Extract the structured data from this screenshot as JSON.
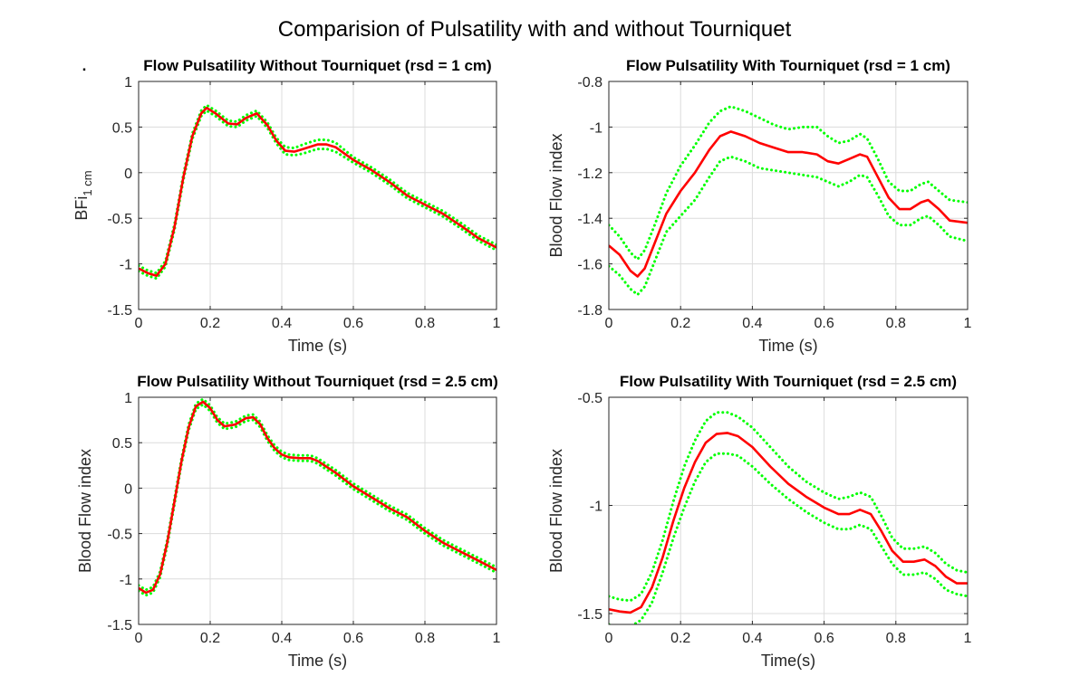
{
  "figure_title": "Comparision of Pulsatility with and without Tourniquet",
  "stray_mark": ".",
  "colors": {
    "mean": "#ff0000",
    "bounds": "#00ff00"
  },
  "chart_data": [
    {
      "type": "line",
      "title": "Flow Pulsatility Without Tourniquet (rsd = 1 cm)",
      "xlabel": "Time (s)",
      "ylabel_main": "BFi",
      "ylabel_sub": "1 cm",
      "xlim": [
        0,
        1
      ],
      "ylim": [
        -1.5,
        1
      ],
      "xticks": [
        0,
        0.2,
        0.4,
        0.6,
        0.8,
        1
      ],
      "xtick_labels": [
        "0",
        "0.2",
        "0.4",
        "0.6",
        "0.8",
        "1"
      ],
      "yticks": [
        1,
        0.5,
        0,
        -0.5,
        -1,
        -1.5
      ],
      "ytick_labels": [
        "1",
        "0.5",
        "0",
        "-0.5",
        "-1",
        "-1.5"
      ],
      "grid": true,
      "series": [
        {
          "role": "mean",
          "style": "solid",
          "x": [
            0,
            0.025,
            0.05,
            0.075,
            0.1,
            0.125,
            0.15,
            0.175,
            0.19,
            0.215,
            0.25,
            0.275,
            0.3,
            0.33,
            0.36,
            0.385,
            0.41,
            0.435,
            0.46,
            0.5,
            0.525,
            0.55,
            0.6,
            0.65,
            0.7,
            0.75,
            0.8,
            0.85,
            0.9,
            0.95,
            1
          ],
          "y": [
            -1.05,
            -1.1,
            -1.13,
            -1.0,
            -0.6,
            -0.05,
            0.4,
            0.65,
            0.71,
            0.65,
            0.54,
            0.53,
            0.6,
            0.65,
            0.52,
            0.35,
            0.24,
            0.23,
            0.26,
            0.31,
            0.31,
            0.28,
            0.14,
            0.03,
            -0.1,
            -0.25,
            -0.35,
            -0.45,
            -0.58,
            -0.72,
            -0.82
          ]
        },
        {
          "role": "upper",
          "style": "dotted",
          "x": [
            0,
            0.025,
            0.05,
            0.075,
            0.1,
            0.125,
            0.15,
            0.175,
            0.19,
            0.215,
            0.25,
            0.275,
            0.3,
            0.33,
            0.36,
            0.385,
            0.41,
            0.435,
            0.46,
            0.5,
            0.525,
            0.55,
            0.6,
            0.65,
            0.7,
            0.75,
            0.8,
            0.85,
            0.9,
            0.95,
            1
          ],
          "y": [
            -1.02,
            -1.07,
            -1.1,
            -0.97,
            -0.57,
            -0.02,
            0.43,
            0.68,
            0.74,
            0.68,
            0.57,
            0.56,
            0.63,
            0.68,
            0.55,
            0.38,
            0.28,
            0.27,
            0.31,
            0.36,
            0.36,
            0.33,
            0.17,
            0.06,
            -0.07,
            -0.22,
            -0.32,
            -0.42,
            -0.55,
            -0.69,
            -0.79
          ]
        },
        {
          "role": "lower",
          "style": "dotted",
          "x": [
            0,
            0.025,
            0.05,
            0.075,
            0.1,
            0.125,
            0.15,
            0.175,
            0.19,
            0.215,
            0.25,
            0.275,
            0.3,
            0.33,
            0.36,
            0.385,
            0.41,
            0.435,
            0.46,
            0.5,
            0.525,
            0.55,
            0.6,
            0.65,
            0.7,
            0.75,
            0.8,
            0.85,
            0.9,
            0.95,
            1
          ],
          "y": [
            -1.08,
            -1.13,
            -1.16,
            -1.03,
            -0.63,
            -0.08,
            0.37,
            0.62,
            0.68,
            0.62,
            0.51,
            0.5,
            0.57,
            0.62,
            0.49,
            0.32,
            0.2,
            0.19,
            0.21,
            0.26,
            0.26,
            0.23,
            0.11,
            0.0,
            -0.13,
            -0.28,
            -0.38,
            -0.48,
            -0.61,
            -0.75,
            -0.85
          ]
        }
      ]
    },
    {
      "type": "line",
      "title": "Flow Pulsatility With Tourniquet (rsd = 1 cm)",
      "xlabel": "Time (s)",
      "ylabel_main": "Blood Flow index",
      "ylabel_sub": "",
      "xlim": [
        0,
        1
      ],
      "ylim": [
        -1.8,
        -0.8
      ],
      "xticks": [
        0,
        0.2,
        0.4,
        0.6,
        0.8,
        1
      ],
      "xtick_labels": [
        "0",
        "0.2",
        "0.4",
        "0.6",
        "0.8",
        "1"
      ],
      "yticks": [
        -0.8,
        -1,
        -1.2,
        -1.4,
        -1.6,
        -1.8
      ],
      "ytick_labels": [
        "-0.8",
        "-1",
        "-1.2",
        "-1.4",
        "-1.6",
        "-1.8"
      ],
      "grid": true,
      "series": [
        {
          "role": "mean",
          "style": "solid",
          "x": [
            0,
            0.03,
            0.06,
            0.08,
            0.1,
            0.13,
            0.16,
            0.2,
            0.24,
            0.28,
            0.31,
            0.34,
            0.38,
            0.42,
            0.46,
            0.5,
            0.54,
            0.58,
            0.61,
            0.64,
            0.67,
            0.7,
            0.72,
            0.75,
            0.78,
            0.81,
            0.84,
            0.87,
            0.89,
            0.92,
            0.95,
            1
          ],
          "y": [
            -1.52,
            -1.56,
            -1.63,
            -1.655,
            -1.62,
            -1.5,
            -1.38,
            -1.28,
            -1.2,
            -1.1,
            -1.04,
            -1.02,
            -1.04,
            -1.07,
            -1.09,
            -1.11,
            -1.11,
            -1.12,
            -1.15,
            -1.16,
            -1.14,
            -1.12,
            -1.13,
            -1.22,
            -1.31,
            -1.36,
            -1.36,
            -1.33,
            -1.32,
            -1.36,
            -1.41,
            -1.42
          ]
        },
        {
          "role": "upper",
          "style": "dotted",
          "x": [
            0,
            0.03,
            0.06,
            0.08,
            0.1,
            0.13,
            0.16,
            0.2,
            0.24,
            0.28,
            0.31,
            0.34,
            0.38,
            0.42,
            0.46,
            0.5,
            0.54,
            0.58,
            0.61,
            0.64,
            0.67,
            0.7,
            0.72,
            0.75,
            0.78,
            0.81,
            0.84,
            0.87,
            0.89,
            0.92,
            0.95,
            1
          ],
          "y": [
            -1.43,
            -1.48,
            -1.55,
            -1.58,
            -1.54,
            -1.42,
            -1.29,
            -1.17,
            -1.08,
            -0.98,
            -0.93,
            -0.91,
            -0.93,
            -0.96,
            -0.99,
            -1.01,
            -1.0,
            -1.0,
            -1.04,
            -1.07,
            -1.06,
            -1.03,
            -1.05,
            -1.14,
            -1.24,
            -1.28,
            -1.28,
            -1.25,
            -1.24,
            -1.28,
            -1.32,
            -1.33
          ]
        },
        {
          "role": "lower",
          "style": "dotted",
          "x": [
            0,
            0.03,
            0.06,
            0.08,
            0.1,
            0.13,
            0.16,
            0.2,
            0.24,
            0.28,
            0.31,
            0.34,
            0.38,
            0.42,
            0.46,
            0.5,
            0.54,
            0.58,
            0.61,
            0.64,
            0.67,
            0.7,
            0.72,
            0.75,
            0.78,
            0.81,
            0.84,
            0.87,
            0.89,
            0.92,
            0.95,
            1
          ],
          "y": [
            -1.61,
            -1.65,
            -1.71,
            -1.735,
            -1.7,
            -1.58,
            -1.46,
            -1.39,
            -1.32,
            -1.22,
            -1.15,
            -1.13,
            -1.15,
            -1.18,
            -1.19,
            -1.2,
            -1.21,
            -1.22,
            -1.24,
            -1.26,
            -1.24,
            -1.21,
            -1.22,
            -1.3,
            -1.39,
            -1.43,
            -1.43,
            -1.4,
            -1.39,
            -1.43,
            -1.48,
            -1.5
          ]
        }
      ]
    },
    {
      "type": "line",
      "title": "Flow Pulsatility Without Tourniquet (rsd = 2.5 cm)",
      "xlabel": "Time (s)",
      "ylabel_main": "Blood Flow index",
      "ylabel_sub": "",
      "xlim": [
        0,
        1
      ],
      "ylim": [
        -1.5,
        1
      ],
      "xticks": [
        0,
        0.2,
        0.4,
        0.6,
        0.8,
        1
      ],
      "xtick_labels": [
        "0",
        "0.2",
        "0.4",
        "0.6",
        "0.8",
        "1"
      ],
      "yticks": [
        1,
        0.5,
        0,
        -0.5,
        -1,
        -1.5
      ],
      "ytick_labels": [
        "1",
        "0.5",
        "0",
        "-0.5",
        "-1",
        "-1.5"
      ],
      "grid": true,
      "series": [
        {
          "role": "mean",
          "style": "solid",
          "x": [
            0,
            0.02,
            0.04,
            0.06,
            0.08,
            0.1,
            0.12,
            0.14,
            0.16,
            0.18,
            0.2,
            0.22,
            0.24,
            0.27,
            0.3,
            0.32,
            0.34,
            0.36,
            0.38,
            0.4,
            0.42,
            0.45,
            0.48,
            0.5,
            0.55,
            0.6,
            0.65,
            0.7,
            0.75,
            0.8,
            0.85,
            0.9,
            0.95,
            1
          ],
          "y": [
            -1.1,
            -1.15,
            -1.12,
            -0.95,
            -0.6,
            -0.15,
            0.3,
            0.67,
            0.9,
            0.95,
            0.88,
            0.75,
            0.68,
            0.7,
            0.77,
            0.78,
            0.7,
            0.55,
            0.44,
            0.37,
            0.34,
            0.33,
            0.33,
            0.3,
            0.17,
            0.02,
            -0.1,
            -0.22,
            -0.32,
            -0.47,
            -0.6,
            -0.7,
            -0.8,
            -0.9
          ]
        },
        {
          "role": "upper",
          "style": "dotted",
          "x": [
            0,
            0.02,
            0.04,
            0.06,
            0.08,
            0.1,
            0.12,
            0.14,
            0.16,
            0.18,
            0.2,
            0.22,
            0.24,
            0.27,
            0.3,
            0.32,
            0.34,
            0.36,
            0.38,
            0.4,
            0.42,
            0.45,
            0.48,
            0.5,
            0.55,
            0.6,
            0.65,
            0.7,
            0.75,
            0.8,
            0.85,
            0.9,
            0.95,
            1
          ],
          "y": [
            -1.07,
            -1.12,
            -1.09,
            -0.92,
            -0.57,
            -0.12,
            0.33,
            0.7,
            0.93,
            0.98,
            0.91,
            0.78,
            0.71,
            0.73,
            0.8,
            0.81,
            0.73,
            0.58,
            0.47,
            0.4,
            0.37,
            0.36,
            0.36,
            0.33,
            0.2,
            0.05,
            -0.07,
            -0.19,
            -0.29,
            -0.44,
            -0.57,
            -0.67,
            -0.77,
            -0.87
          ]
        },
        {
          "role": "lower",
          "style": "dotted",
          "x": [
            0,
            0.02,
            0.04,
            0.06,
            0.08,
            0.1,
            0.12,
            0.14,
            0.16,
            0.18,
            0.2,
            0.22,
            0.24,
            0.27,
            0.3,
            0.32,
            0.34,
            0.36,
            0.38,
            0.4,
            0.42,
            0.45,
            0.48,
            0.5,
            0.55,
            0.6,
            0.65,
            0.7,
            0.75,
            0.8,
            0.85,
            0.9,
            0.95,
            1
          ],
          "y": [
            -1.13,
            -1.18,
            -1.15,
            -0.98,
            -0.63,
            -0.18,
            0.27,
            0.64,
            0.87,
            0.92,
            0.85,
            0.72,
            0.65,
            0.67,
            0.74,
            0.75,
            0.67,
            0.52,
            0.41,
            0.34,
            0.31,
            0.3,
            0.3,
            0.27,
            0.14,
            -0.01,
            -0.13,
            -0.25,
            -0.35,
            -0.5,
            -0.63,
            -0.73,
            -0.83,
            -0.93
          ]
        }
      ]
    },
    {
      "type": "line",
      "title": "Flow Pulsatility With Tourniquet (rsd = 2.5 cm)",
      "xlabel": "Time(s)",
      "ylabel_main": "Blood Flow index",
      "ylabel_sub": "",
      "xlim": [
        0,
        1
      ],
      "ylim": [
        -1.55,
        -0.5
      ],
      "xticks": [
        0,
        0.2,
        0.4,
        0.6,
        0.8,
        1
      ],
      "xtick_labels": [
        "0",
        "0.2",
        "0.4",
        "0.6",
        "0.8",
        "1"
      ],
      "yticks": [
        -0.5,
        -1,
        -1.5
      ],
      "ytick_labels": [
        "-0.5",
        "-1",
        "-1.5"
      ],
      "grid": true,
      "series": [
        {
          "role": "mean",
          "style": "solid",
          "x": [
            0,
            0.03,
            0.06,
            0.09,
            0.12,
            0.15,
            0.18,
            0.21,
            0.24,
            0.27,
            0.3,
            0.33,
            0.36,
            0.4,
            0.45,
            0.5,
            0.55,
            0.6,
            0.64,
            0.67,
            0.7,
            0.73,
            0.76,
            0.79,
            0.82,
            0.85,
            0.88,
            0.91,
            0.94,
            0.97,
            1
          ],
          "y": [
            -1.48,
            -1.49,
            -1.495,
            -1.47,
            -1.38,
            -1.24,
            -1.07,
            -0.92,
            -0.8,
            -0.71,
            -0.67,
            -0.665,
            -0.68,
            -0.73,
            -0.82,
            -0.9,
            -0.96,
            -1.01,
            -1.04,
            -1.04,
            -1.02,
            -1.04,
            -1.12,
            -1.21,
            -1.26,
            -1.26,
            -1.25,
            -1.28,
            -1.33,
            -1.36,
            -1.36
          ]
        },
        {
          "role": "upper",
          "style": "dotted",
          "x": [
            0,
            0.03,
            0.06,
            0.09,
            0.12,
            0.15,
            0.18,
            0.21,
            0.24,
            0.27,
            0.3,
            0.33,
            0.36,
            0.4,
            0.45,
            0.5,
            0.55,
            0.6,
            0.64,
            0.67,
            0.7,
            0.73,
            0.76,
            0.79,
            0.82,
            0.85,
            0.88,
            0.91,
            0.94,
            0.97,
            1
          ],
          "y": [
            -1.42,
            -1.435,
            -1.44,
            -1.41,
            -1.31,
            -1.16,
            -0.98,
            -0.82,
            -0.7,
            -0.61,
            -0.57,
            -0.57,
            -0.59,
            -0.64,
            -0.73,
            -0.82,
            -0.89,
            -0.94,
            -0.97,
            -0.96,
            -0.94,
            -0.96,
            -1.05,
            -1.15,
            -1.2,
            -1.2,
            -1.19,
            -1.22,
            -1.27,
            -1.3,
            -1.31
          ]
        },
        {
          "role": "lower",
          "style": "dotted",
          "x": [
            0,
            0.03,
            0.06,
            0.09,
            0.12,
            0.15,
            0.18,
            0.21,
            0.24,
            0.27,
            0.3,
            0.33,
            0.36,
            0.4,
            0.45,
            0.5,
            0.55,
            0.6,
            0.64,
            0.67,
            0.7,
            0.73,
            0.76,
            0.79,
            0.82,
            0.85,
            0.88,
            0.91,
            0.94,
            0.97,
            1
          ],
          "y": [
            -1.55,
            -1.56,
            -1.56,
            -1.53,
            -1.45,
            -1.31,
            -1.15,
            -1.01,
            -0.89,
            -0.8,
            -0.76,
            -0.76,
            -0.77,
            -0.82,
            -0.9,
            -0.97,
            -1.03,
            -1.08,
            -1.11,
            -1.11,
            -1.09,
            -1.11,
            -1.19,
            -1.27,
            -1.32,
            -1.32,
            -1.31,
            -1.34,
            -1.39,
            -1.41,
            -1.42
          ]
        }
      ]
    }
  ]
}
